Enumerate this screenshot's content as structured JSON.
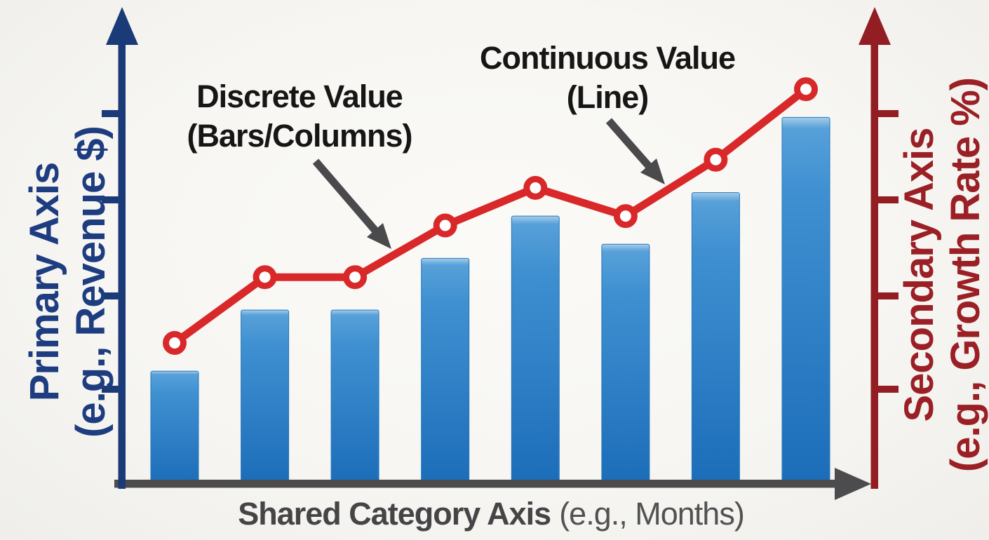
{
  "figure": {
    "background_color": "#f7f6f3",
    "primary_axis": {
      "label_line1": "Primary Axis",
      "label_line2": "(e.g., Revenue $)",
      "color": "#1e3d80",
      "tick_count": 4,
      "tick_labels_visible": false
    },
    "secondary_axis": {
      "label_line1": "Secondary Axis",
      "label_line2": "(e.g., Growth Rate %)",
      "color": "#9a2026",
      "tick_count": 4,
      "tick_labels_visible": false
    },
    "category_axis": {
      "label_bold": "Shared Category Axis",
      "label_regular": "(e.g., Months)",
      "color": "#49494b"
    },
    "annotations": [
      {
        "id": "bars",
        "line1": "Discrete Value",
        "line2": "(Bars/Columns)",
        "arrow_points_to": "column region between 3rd and 4th bars"
      },
      {
        "id": "line",
        "line1": "Continuous Value",
        "line2": "(Line)",
        "arrow_points_to": "line segment between 6th and 7th markers"
      }
    ],
    "colors": {
      "bar_gradient_top": "#4e9bd9",
      "bar_gradient_bottom": "#1c6db9",
      "bar_stroke": "#2577bb",
      "line_red": "#d9282a",
      "marker_fill": "#ffffff",
      "axis_navy": "#1b3a78",
      "axis_maroon": "#921d22",
      "axis_gray": "#4c4c4e",
      "annotation_text": "#161616",
      "annotation_arrow": "#4a4a4c"
    }
  },
  "chart_data": {
    "type": "combo",
    "x_count": 8,
    "categories": [
      "",
      "",
      "",
      "",
      "",
      "",
      "",
      ""
    ],
    "category_tick_labels_visible": false,
    "value_units": "relative 0-100 (no numeric scale shown in figure)",
    "series": [
      {
        "name": "Discrete Value (Bars/Columns)",
        "type": "bar",
        "axis": "primary",
        "values": [
          24,
          37,
          37,
          48,
          57,
          51,
          62,
          78
        ]
      },
      {
        "name": "Continuous Value (Line)",
        "type": "line",
        "axis": "secondary",
        "values": [
          30,
          44,
          44,
          55,
          63,
          57,
          69,
          84
        ]
      }
    ],
    "xlabel": "Shared Category Axis (e.g., Months)",
    "ylabel_left": "Primary Axis (e.g., Revenue $)",
    "ylabel_right": "Secondary Axis (e.g., Growth Rate %)",
    "ylim": [
      0,
      100
    ],
    "grid": false,
    "legend": false
  }
}
